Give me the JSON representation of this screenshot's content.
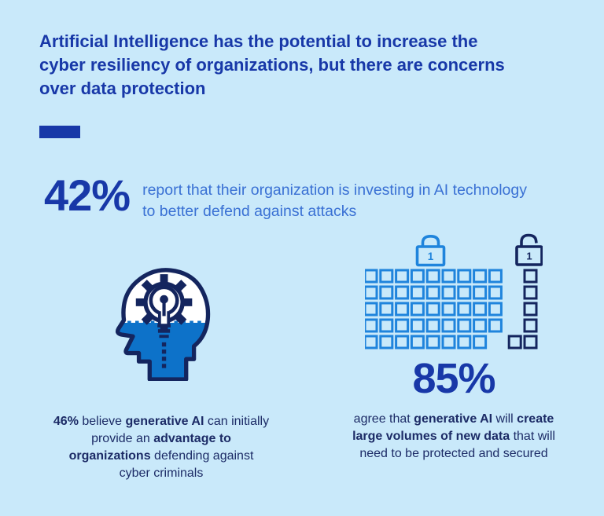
{
  "page": {
    "background_color": "#c9e9fa",
    "title_lines": [
      "Artificial Intelligence has the potential to increase the",
      "cyber resiliency of organizations, but there are concerns",
      "over data protection"
    ]
  },
  "colors": {
    "royal_blue": "#1838a8",
    "medium_blue_text": "#3a71d4",
    "navy_text": "#1c2b66",
    "icon_light_blue": "#1f84dc",
    "icon_navy": "#14255e",
    "head_fill_blue": "#0d72c9"
  },
  "stat_invest": {
    "value": "42%",
    "description_lines": [
      "report that their organization is investing in AI technology",
      "to better defend against attacks"
    ]
  },
  "stat_genai_advantage": {
    "icon": "head-gear-lightbulb-icon",
    "caption_parts": [
      {
        "text": "46%",
        "bold": true
      },
      {
        "text": " believe ",
        "bold": false
      },
      {
        "text": "generative AI",
        "bold": true
      },
      {
        "text": " can initially",
        "bold": false
      },
      {
        "br": true
      },
      {
        "text": "provide an ",
        "bold": false
      },
      {
        "text": "advantage to",
        "bold": true
      },
      {
        "br": true
      },
      {
        "text": "organizations",
        "bold": true
      },
      {
        "text": " defending against",
        "bold": false
      },
      {
        "br": true
      },
      {
        "text": "cyber criminals",
        "bold": false
      }
    ]
  },
  "stat_new_data": {
    "value": "85%",
    "icon": "data-squares-locks-icon",
    "locks": {
      "closed_lock_key": "1",
      "open_lock_key": "1"
    },
    "grid": {
      "light_rows": [
        9,
        9,
        9,
        9,
        8
      ],
      "dark_column_rows": 5,
      "dark_extra_bottom": 1
    },
    "caption_parts": [
      {
        "text": "agree that ",
        "bold": false
      },
      {
        "text": "generative AI",
        "bold": true
      },
      {
        "text": " will ",
        "bold": false
      },
      {
        "text": "create",
        "bold": true
      },
      {
        "br": true
      },
      {
        "text": "large volumes of new data",
        "bold": true
      },
      {
        "text": " that will",
        "bold": false
      },
      {
        "br": true
      },
      {
        "text": "need to be protected and secured",
        "bold": false
      }
    ]
  },
  "chart_data": {
    "type": "table",
    "title": "Artificial Intelligence has the potential to increase the cyber resiliency of organizations, but there are concerns over data protection",
    "stats": [
      {
        "value": 42,
        "unit": "%",
        "label": "report that their organization is investing in AI technology to better defend against attacks"
      },
      {
        "value": 46,
        "unit": "%",
        "label": "believe generative AI can initially provide an advantage to organizations defending against cyber criminals"
      },
      {
        "value": 85,
        "unit": "%",
        "label": "agree that generative AI will create large volumes of new data that will need to be protected and secured"
      }
    ]
  }
}
